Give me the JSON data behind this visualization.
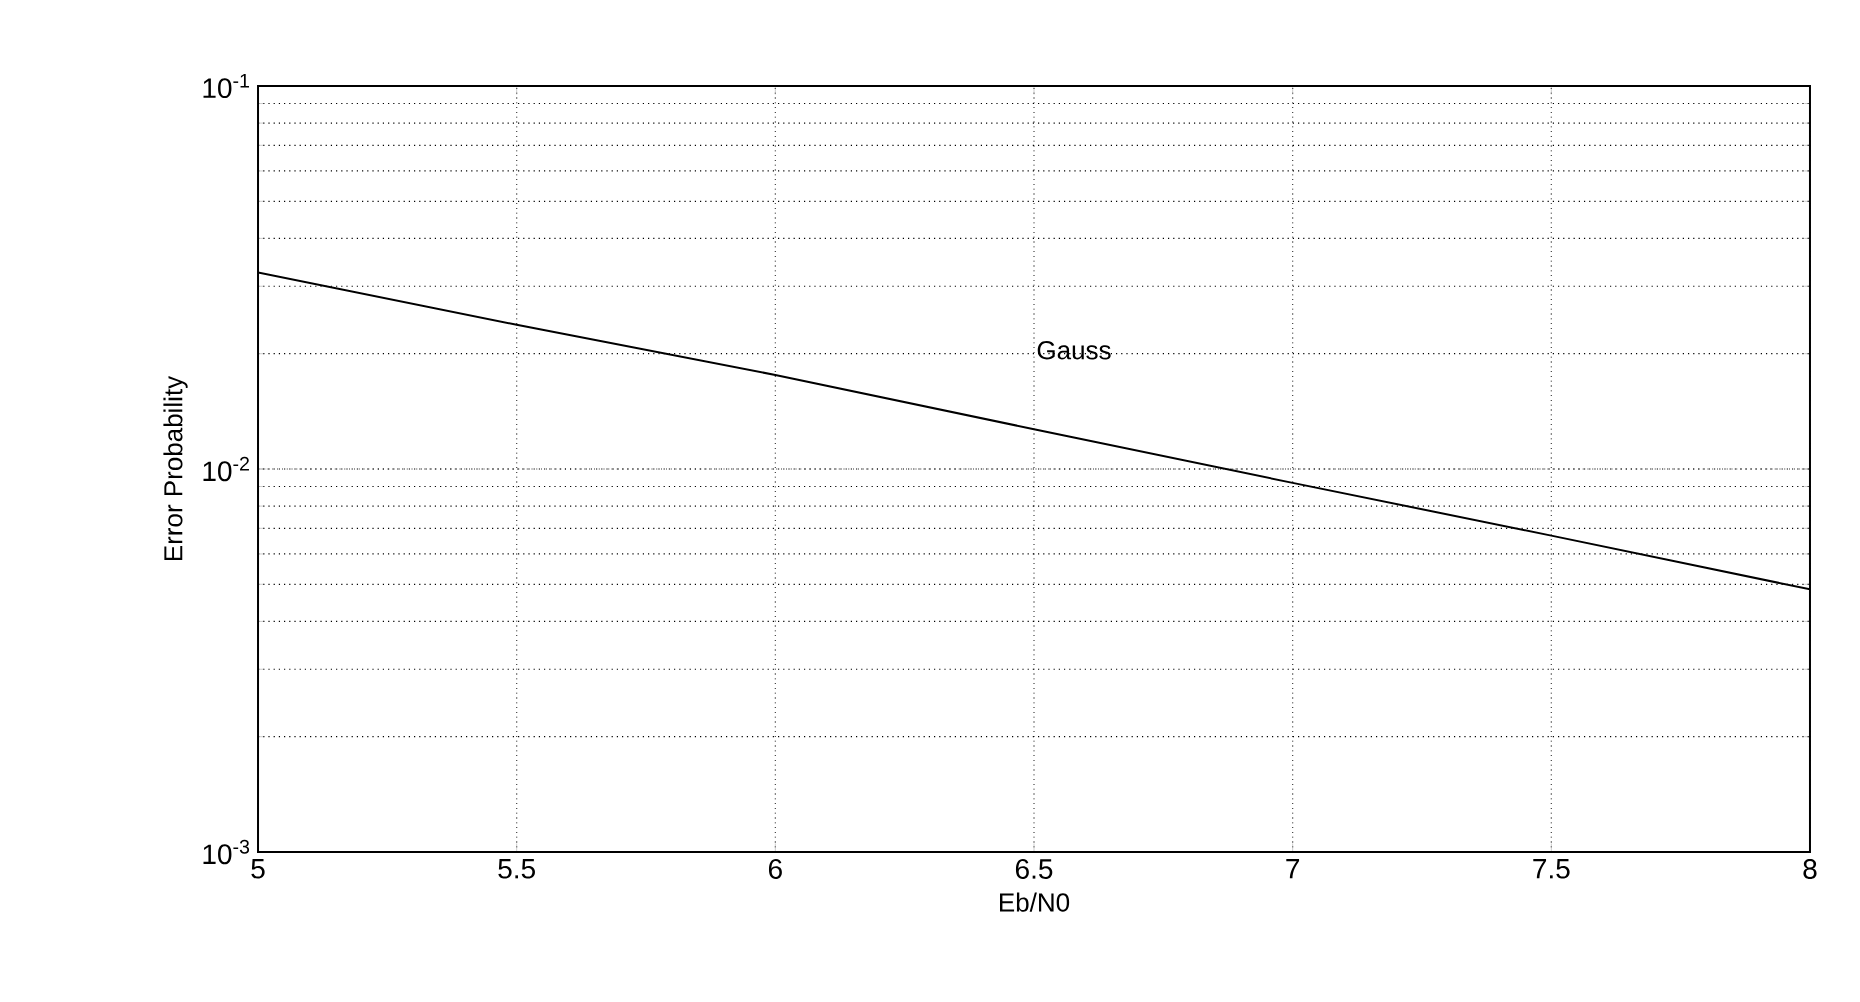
{
  "chart_data": {
    "type": "line",
    "xlabel": "Eb/N0",
    "ylabel": "Error Probability",
    "x": [
      5,
      5.5,
      6,
      6.5,
      7,
      7.5,
      8
    ],
    "series": [
      {
        "color": "#000000",
        "values": [
          0.0326,
          0.0238,
          0.0176,
          0.0127,
          0.0092,
          0.0067,
          0.00485
        ]
      }
    ],
    "xlim": [
      5,
      8
    ],
    "ylim": [
      0.001,
      0.1
    ],
    "log": "y",
    "xticks": [
      5,
      5.5,
      6,
      6.5,
      7,
      7.5,
      8
    ],
    "yticks": [
      {
        "value": 0.001,
        "label": "10$^{-3}$"
      },
      {
        "value": 0.01,
        "label": "10$^{-2}$"
      },
      {
        "value": 0.1,
        "label": "10$^{-1}$"
      }
    ],
    "annotations": [
      "Gauss"
    ],
    "grid": true,
    "marker": "none",
    "line_style": "solid"
  }
}
